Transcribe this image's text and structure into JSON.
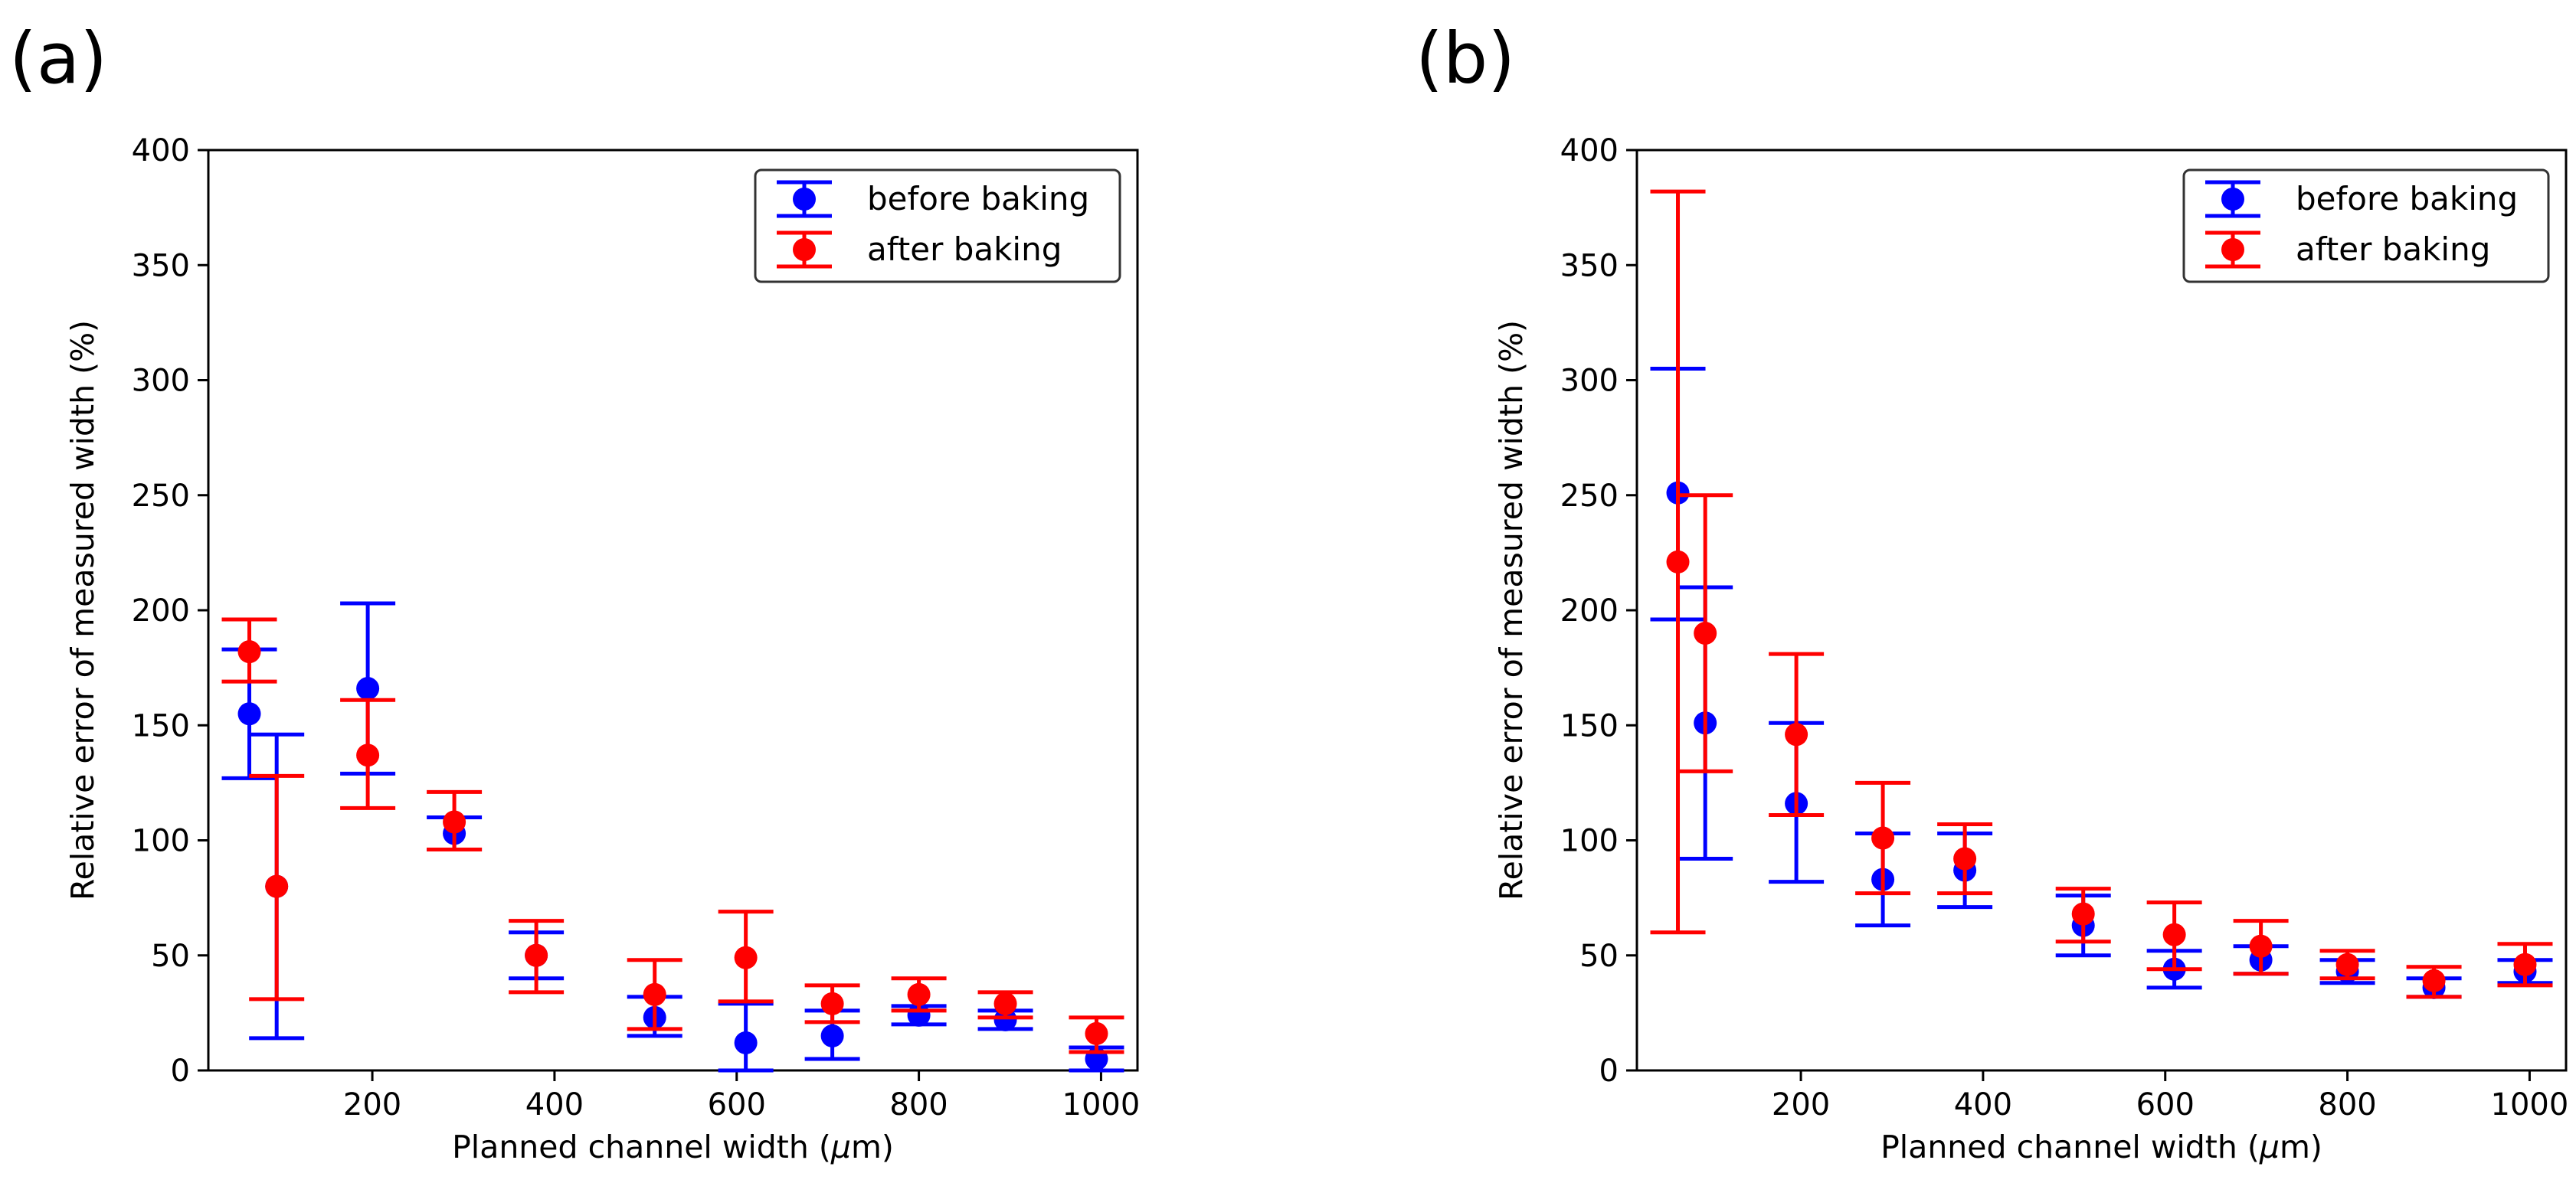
{
  "figure": {
    "panels": [
      "(a)",
      "(b)"
    ]
  },
  "chart_data": [
    {
      "type": "scatter",
      "panel_label": "(a)",
      "title": "",
      "xlabel_main": "Planned channel width (",
      "xlabel_mu": "μ",
      "xlabel_tail": "m)",
      "ylabel": "Relative error of measured width (%)",
      "xlim": [
        20,
        1040
      ],
      "ylim": [
        0,
        400
      ],
      "xticks": [
        200,
        400,
        600,
        800,
        1000
      ],
      "yticks": [
        0,
        50,
        100,
        150,
        200,
        250,
        300,
        350,
        400
      ],
      "legend": [
        "before baking",
        "after baking"
      ],
      "legend_position": "top-right",
      "colors": {
        "before": "#0000ff",
        "after": "#ff0000"
      },
      "series": [
        {
          "name": "before baking",
          "x": [
            65,
            95,
            195,
            290,
            380,
            510,
            610,
            705,
            800,
            895,
            995
          ],
          "y": [
            155,
            80,
            166,
            103,
            50,
            23,
            12,
            15,
            24,
            22,
            5
          ],
          "ylow": [
            127,
            14,
            129,
            96,
            40,
            15,
            0,
            5,
            20,
            18,
            0
          ],
          "yhigh": [
            183,
            146,
            203,
            110,
            60,
            32,
            29,
            26,
            28,
            26,
            10
          ]
        },
        {
          "name": "after baking",
          "x": [
            65,
            95,
            195,
            290,
            380,
            510,
            610,
            705,
            800,
            895,
            995
          ],
          "y": [
            182,
            80,
            137,
            108,
            50,
            33,
            49,
            29,
            33,
            29,
            16
          ],
          "ylow": [
            169,
            31,
            114,
            96,
            34,
            18,
            30,
            21,
            26,
            23,
            8
          ],
          "yhigh": [
            196,
            128,
            161,
            121,
            65,
            48,
            69,
            37,
            40,
            34,
            23
          ]
        }
      ]
    },
    {
      "type": "scatter",
      "panel_label": "(b)",
      "title": "",
      "xlabel_main": "Planned channel width (",
      "xlabel_mu": "μ",
      "xlabel_tail": "m)",
      "ylabel": "Relative error of measured width (%)",
      "xlim": [
        20,
        1040
      ],
      "ylim": [
        0,
        400
      ],
      "xticks": [
        200,
        400,
        600,
        800,
        1000
      ],
      "yticks": [
        0,
        50,
        100,
        150,
        200,
        250,
        300,
        350,
        400
      ],
      "legend": [
        "before baking",
        "after baking"
      ],
      "legend_position": "top-right",
      "colors": {
        "before": "#0000ff",
        "after": "#ff0000"
      },
      "series": [
        {
          "name": "before baking",
          "x": [
            65,
            95,
            195,
            290,
            380,
            510,
            610,
            705,
            800,
            895,
            995
          ],
          "y": [
            251,
            151,
            116,
            83,
            87,
            63,
            44,
            48,
            43,
            36,
            43
          ],
          "ylow": [
            196,
            92,
            82,
            63,
            71,
            50,
            36,
            42,
            38,
            32,
            38
          ],
          "yhigh": [
            305,
            210,
            151,
            103,
            103,
            76,
            52,
            54,
            48,
            40,
            48
          ]
        },
        {
          "name": "after baking",
          "x": [
            65,
            95,
            195,
            290,
            380,
            510,
            610,
            705,
            800,
            895,
            995
          ],
          "y": [
            221,
            190,
            146,
            101,
            92,
            68,
            59,
            54,
            46,
            39,
            46
          ],
          "ylow": [
            60,
            130,
            111,
            77,
            77,
            56,
            44,
            42,
            40,
            32,
            37
          ],
          "yhigh": [
            382,
            250,
            181,
            125,
            107,
            79,
            73,
            65,
            52,
            45,
            55
          ]
        }
      ]
    }
  ]
}
